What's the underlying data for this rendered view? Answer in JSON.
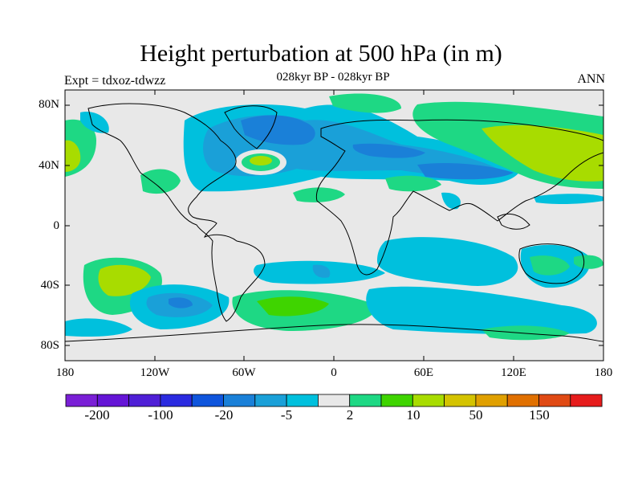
{
  "title": "Height perturbation at 500 hPa (in m)",
  "subtitle": "028kyr BP - 028kyr BP",
  "left_label": "Expt = tdxoz-tdwzz",
  "right_label": "ANN",
  "y_ticks": [
    "80N",
    "40N",
    "0",
    "40S",
    "80S"
  ],
  "x_ticks": [
    "180",
    "120W",
    "60W",
    "0",
    "60E",
    "120E",
    "180"
  ],
  "colorbar": {
    "colors": [
      "#7a1fd6",
      "#6515d6",
      "#4f1fd6",
      "#2b2be0",
      "#0f55dc",
      "#1a80d8",
      "#1aa0d8",
      "#00c0dd",
      "#e8e8e8",
      "#1ed884",
      "#3fd400",
      "#a8dc00",
      "#d4c300",
      "#e0a000",
      "#e07000",
      "#e04a14",
      "#e61c1c"
    ],
    "labels": [
      "-200",
      "-100",
      "-20",
      "-5",
      "2",
      "10",
      "50",
      "150"
    ]
  },
  "map": {
    "background_color": "#e8e8e8",
    "coastline": "black outline of continents"
  }
}
